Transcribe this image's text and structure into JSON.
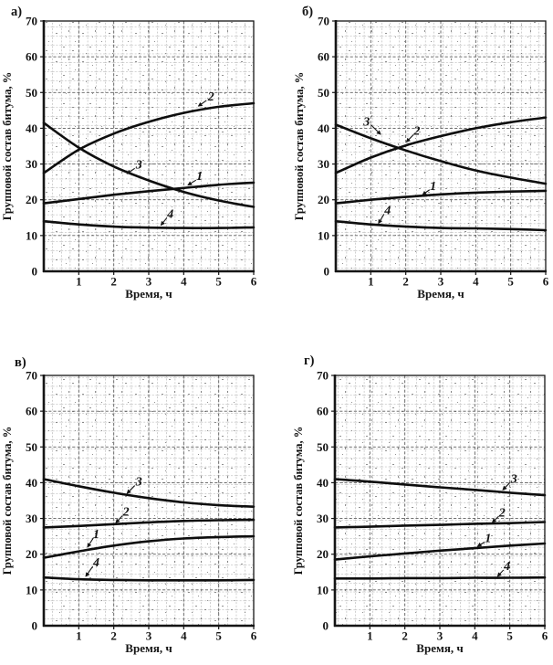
{
  "figure": {
    "description": "Four scanned line charts of bitumen group composition vs time",
    "panels": [
      {
        "key": "a",
        "label": "а)"
      },
      {
        "key": "b",
        "label": "б)"
      },
      {
        "key": "v",
        "label": "в)"
      },
      {
        "key": "g",
        "label": "г)"
      }
    ]
  },
  "axes": {
    "xlabel": "Время, ч",
    "ylabel": "Групповой состав битума, %",
    "x_ticks": [
      1,
      2,
      3,
      4,
      5,
      6
    ],
    "y_ticks": [
      0,
      10,
      20,
      30,
      40,
      50,
      60,
      70
    ],
    "xlim": [
      0,
      6
    ],
    "ylim": [
      0,
      70
    ],
    "grid": "fine graph paper, dashed"
  },
  "colors": {
    "background": "#ffffff",
    "grid_minor": "#8a8a8a",
    "grid_major": "#5e5e5e",
    "speckle": "#4a4a4a",
    "axis": "#151515",
    "curve": "#0e0e0e",
    "text": "#141414"
  },
  "chart_data": [
    {
      "type": "line",
      "panel": "а)",
      "xlabel": "Время, ч",
      "ylabel": "Групповой состав битума, %",
      "xlim": [
        0,
        6
      ],
      "ylim": [
        0,
        70
      ],
      "x": [
        0,
        1,
        2,
        3,
        4,
        5,
        6
      ],
      "series": [
        {
          "name": "1",
          "values": [
            19,
            20.2,
            21.4,
            22.4,
            23.3,
            24.2,
            24.8
          ],
          "label_at": [
            4.45,
            26.6
          ],
          "leader": [
            [
              4.35,
              25.5
            ],
            [
              4.12,
              24.1
            ]
          ]
        },
        {
          "name": "2",
          "values": [
            27.5,
            34,
            38.5,
            41.8,
            44.3,
            46,
            47
          ],
          "label_at": [
            4.78,
            48.8
          ],
          "leader": [
            [
              4.65,
              47.8
            ],
            [
              4.42,
              46.2
            ]
          ]
        },
        {
          "name": "3",
          "values": [
            41.5,
            34.6,
            29.3,
            25.4,
            22.2,
            19.8,
            18
          ],
          "label_at": [
            2.72,
            29.8
          ],
          "leader": [
            [
              2.6,
              28.8
            ],
            [
              2.38,
              27.3
            ]
          ]
        },
        {
          "name": "4",
          "values": [
            14,
            13.1,
            12.5,
            12.2,
            12.1,
            12.1,
            12.3
          ],
          "label_at": [
            3.62,
            16.0
          ],
          "leader": [
            [
              3.52,
              15.0
            ],
            [
              3.35,
              12.9
            ]
          ]
        }
      ]
    },
    {
      "type": "line",
      "panel": "б)",
      "xlabel": "Время, ч",
      "ylabel": "Групповой состав битума, %",
      "xlim": [
        0,
        6
      ],
      "ylim": [
        0,
        70
      ],
      "x": [
        0,
        1,
        2,
        3,
        4,
        5,
        6
      ],
      "series": [
        {
          "name": "1",
          "values": [
            19,
            20,
            20.8,
            21.5,
            22,
            22.3,
            22.5
          ],
          "label_at": [
            2.78,
            23.8
          ],
          "leader": [
            [
              2.68,
              22.8
            ],
            [
              2.48,
              21.4
            ]
          ]
        },
        {
          "name": "2",
          "values": [
            27.5,
            31.8,
            35.2,
            37.8,
            40,
            41.7,
            43
          ],
          "label_at": [
            2.32,
            39.2
          ],
          "leader": [
            [
              2.22,
              38.2
            ],
            [
              2.02,
              36.2
            ]
          ]
        },
        {
          "name": "3",
          "values": [
            41,
            37.2,
            33.8,
            30.8,
            28.2,
            26.2,
            24.5
          ],
          "label_at": [
            0.88,
            41.8
          ],
          "leader": [
            [
              1.0,
              41.0
            ],
            [
              1.28,
              38.3
            ]
          ]
        },
        {
          "name": "4",
          "values": [
            14,
            13.1,
            12.5,
            12.1,
            12,
            11.8,
            11.5
          ],
          "label_at": [
            1.48,
            17.0
          ],
          "leader": [
            [
              1.38,
              16.0
            ],
            [
              1.22,
              13.4
            ]
          ]
        }
      ]
    },
    {
      "type": "line",
      "panel": "в)",
      "xlabel": "Время, ч",
      "ylabel": "Групповой состав битума, %",
      "xlim": [
        0,
        6
      ],
      "ylim": [
        0,
        70
      ],
      "x": [
        0,
        1,
        2,
        3,
        4,
        5,
        6
      ],
      "series": [
        {
          "name": "1",
          "values": [
            19,
            20.8,
            22.4,
            23.6,
            24.4,
            24.8,
            25
          ],
          "label_at": [
            1.5,
            25.6
          ],
          "leader": [
            [
              1.42,
              24.6
            ],
            [
              1.25,
              22.0
            ]
          ]
        },
        {
          "name": "2",
          "values": [
            27.5,
            27.9,
            28.4,
            28.9,
            29.3,
            29.5,
            29.6
          ],
          "label_at": [
            2.35,
            31.8
          ],
          "leader": [
            [
              2.25,
              30.8
            ],
            [
              2.06,
              28.8
            ]
          ]
        },
        {
          "name": "3",
          "values": [
            41,
            39,
            37.2,
            35.7,
            34.5,
            33.7,
            33.3
          ],
          "label_at": [
            2.72,
            40.2
          ],
          "leader": [
            [
              2.6,
              39.2
            ],
            [
              2.38,
              37.0
            ]
          ]
        },
        {
          "name": "4",
          "values": [
            13.5,
            13,
            12.8,
            12.7,
            12.7,
            12.7,
            12.8
          ],
          "label_at": [
            1.5,
            17.6
          ],
          "leader": [
            [
              1.4,
              16.6
            ],
            [
              1.2,
              13.8
            ]
          ]
        }
      ]
    },
    {
      "type": "line",
      "panel": "г)",
      "xlabel": "Время, ч",
      "ylabel": "Групповой состав битума, %",
      "xlim": [
        0,
        6
      ],
      "ylim": [
        0,
        70
      ],
      "x": [
        0,
        1,
        2,
        3,
        4,
        5,
        6
      ],
      "series": [
        {
          "name": "1",
          "values": [
            18.5,
            19.4,
            20.2,
            21,
            21.7,
            22.4,
            23
          ],
          "label_at": [
            4.38,
            24.4
          ],
          "leader": [
            [
              4.28,
              23.4
            ],
            [
              4.08,
              22.2
            ]
          ]
        },
        {
          "name": "2",
          "values": [
            27.5,
            27.7,
            28,
            28.2,
            28.5,
            28.7,
            29
          ],
          "label_at": [
            4.78,
            31.6
          ],
          "leader": [
            [
              4.68,
              30.6
            ],
            [
              4.5,
              28.9
            ]
          ]
        },
        {
          "name": "3",
          "values": [
            41,
            40.3,
            39.5,
            38.7,
            38,
            37.2,
            36.5
          ],
          "label_at": [
            5.12,
            41.0
          ],
          "leader": [
            [
              5.0,
              40.0
            ],
            [
              4.8,
              38.0
            ]
          ]
        },
        {
          "name": "4",
          "values": [
            13.2,
            13.2,
            13.3,
            13.3,
            13.4,
            13.4,
            13.5
          ],
          "label_at": [
            4.92,
            16.6
          ],
          "leader": [
            [
              4.82,
              15.6
            ],
            [
              4.65,
              13.8
            ]
          ]
        }
      ]
    }
  ]
}
